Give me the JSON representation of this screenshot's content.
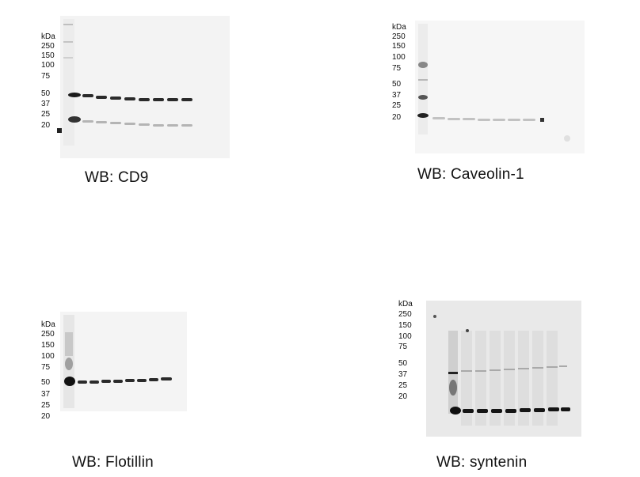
{
  "panels": [
    {
      "caption": "WB:  CD9",
      "unit": "kDa",
      "markers": [
        "250",
        "150",
        "100",
        "75",
        "50",
        "37",
        "25",
        "20"
      ]
    },
    {
      "caption": "WB:  Caveolin-1",
      "unit": "kDa",
      "markers": [
        "250",
        "150",
        "100",
        "75",
        "50",
        "37",
        "25",
        "20"
      ]
    },
    {
      "caption": "WB:  Flotillin",
      "unit": "kDa",
      "markers": [
        "250",
        "150",
        "100",
        "75",
        "50",
        "37",
        "25",
        "20"
      ]
    },
    {
      "caption": "WB:  syntenin",
      "unit": "kDa",
      "markers": [
        "250",
        "150",
        "100",
        "75",
        "50",
        "37",
        "25",
        "20"
      ]
    }
  ]
}
